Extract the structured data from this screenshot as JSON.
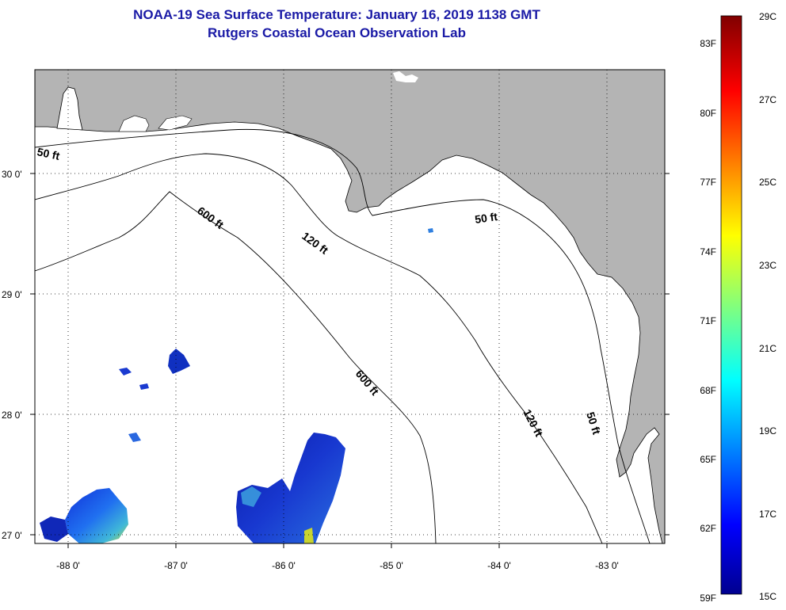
{
  "header": {
    "title": "NOAA-19 Sea Surface Temperature:  January 16, 2019 1138 GMT",
    "subtitle": "Rutgers Coastal Ocean Observation Lab"
  },
  "axes": {
    "lon_ticks": [
      "-88 0'",
      "-87 0'",
      "-86 0'",
      "-85 0'",
      "-84 0'",
      "-83 0'"
    ],
    "lat_ticks": [
      "30 0'",
      "29 0'",
      "28 0'",
      "27 0'"
    ]
  },
  "isobaths": {
    "shallow": "50 ft",
    "mid": "120 ft",
    "deep": "600 ft"
  },
  "colorbar": {
    "fahrenheit": [
      "83F",
      "80F",
      "77F",
      "74F",
      "71F",
      "68F",
      "65F",
      "62F",
      "59F"
    ],
    "celsius": [
      "29C",
      "27C",
      "25C",
      "23C",
      "21C",
      "19C",
      "17C",
      "15C"
    ],
    "min_c": 15,
    "max_c": 29
  },
  "colors": {
    "land": "#b4b4b4",
    "ocean": "#ffffff",
    "title": "#1a1aa6"
  }
}
